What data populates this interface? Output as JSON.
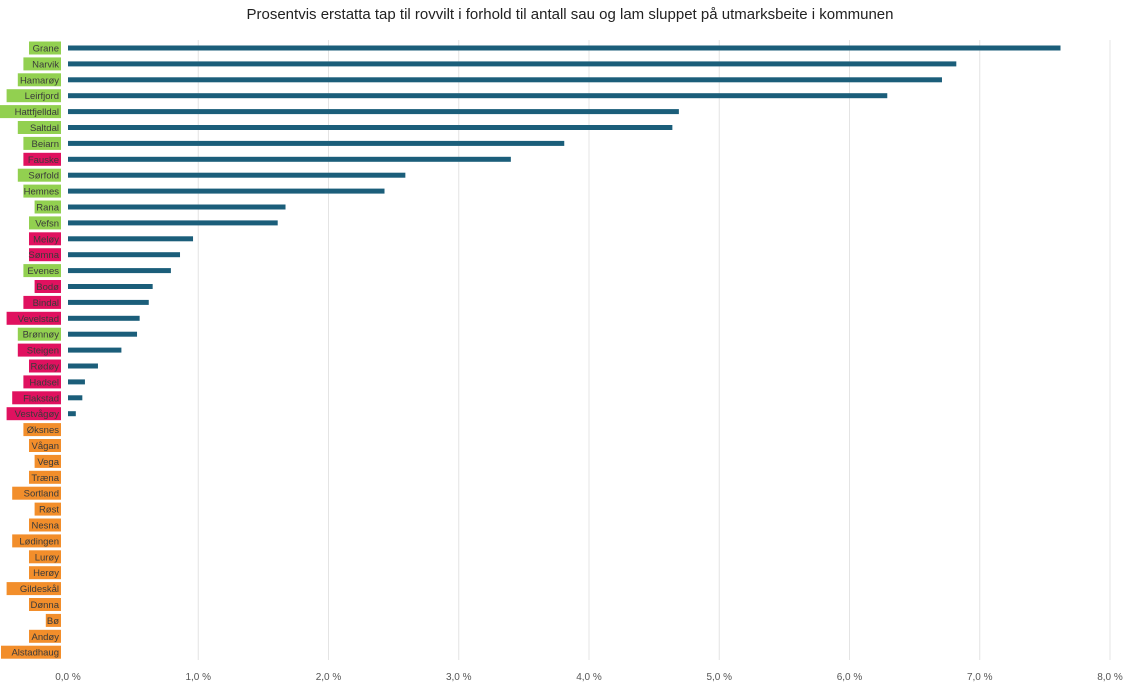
{
  "chart_data": {
    "type": "bar",
    "orientation": "horizontal",
    "title": "Prosentvis erstatta tap til rovvilt i forhold til antall sau og lam sluppet på utmarksbeite i kommunen",
    "xlabel": "",
    "ylabel": "",
    "xlim": [
      0,
      0.08
    ],
    "x_ticks": [
      0,
      0.01,
      0.02,
      0.03,
      0.04,
      0.05,
      0.06,
      0.07,
      0.08
    ],
    "x_tick_labels": [
      "0,0 %",
      "1,0 %",
      "2,0 %",
      "3,0 %",
      "4,0 %",
      "5,0 %",
      "6,0 %",
      "7,0 %",
      "8,0 %"
    ],
    "grid": "vertical",
    "bar_color": "#1b5e7a",
    "label_colors": {
      "green": "#92d050",
      "red": "#e0115f",
      "orange": "#f28e2b"
    },
    "categories": [
      "Grane",
      "Narvik",
      "Hamarøy",
      "Leirfjord",
      "Hattfjelldal",
      "Saltdal",
      "Beiarn",
      "Fauske",
      "Sørfold",
      "Hemnes",
      "Rana",
      "Vefsn",
      "Meløy",
      "Sømna",
      "Evenes",
      "Bodø",
      "Bindal",
      "Vevelstad",
      "Brønnøy",
      "Steigen",
      "Rødøy",
      "Hadsel",
      "Flakstad",
      "Vestvågøy",
      "Øksnes",
      "Vågan",
      "Vega",
      "Træna",
      "Sortland",
      "Røst",
      "Nesna",
      "Lødingen",
      "Lurøy",
      "Herøy",
      "Gildeskål",
      "Dønna",
      "Bø",
      "Andøy",
      "Alstadhaug"
    ],
    "label_groups": [
      "green",
      "green",
      "green",
      "green",
      "green",
      "green",
      "green",
      "red",
      "green",
      "green",
      "green",
      "green",
      "red",
      "red",
      "green",
      "red",
      "red",
      "red",
      "green",
      "red",
      "red",
      "red",
      "red",
      "red",
      "orange",
      "orange",
      "orange",
      "orange",
      "orange",
      "orange",
      "orange",
      "orange",
      "orange",
      "orange",
      "orange",
      "orange",
      "orange",
      "orange",
      "orange"
    ],
    "values": [
      0.0762,
      0.0682,
      0.0671,
      0.0629,
      0.0469,
      0.0464,
      0.0381,
      0.034,
      0.0259,
      0.0243,
      0.0167,
      0.0161,
      0.0096,
      0.0086,
      0.0079,
      0.0065,
      0.0062,
      0.0055,
      0.0053,
      0.0041,
      0.0023,
      0.0013,
      0.0011,
      0.0006,
      0,
      0,
      0,
      0,
      0,
      0,
      0,
      0,
      0,
      0,
      0,
      0,
      0,
      0,
      0
    ]
  }
}
